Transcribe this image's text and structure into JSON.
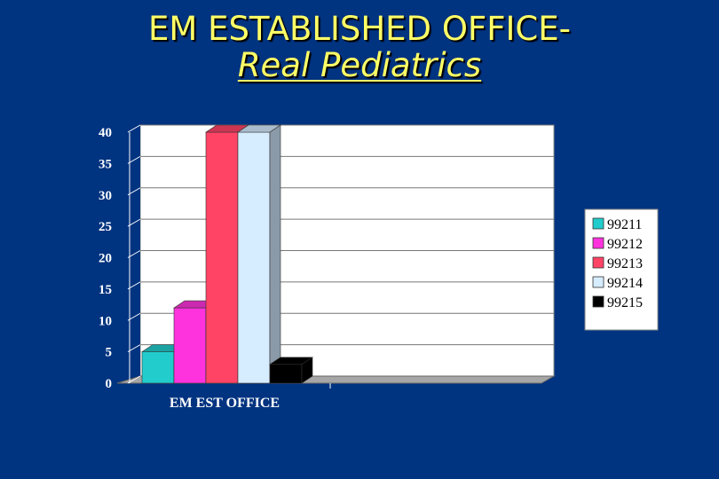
{
  "slide": {
    "title_line1": "EM ESTABLISHED OFFICE-",
    "title_line2": "Real  Pediatrics"
  },
  "chart_data": {
    "type": "bar",
    "style": "3d",
    "categories": [
      "EM EST OFFICE"
    ],
    "series": [
      {
        "name": "99211",
        "values": [
          5
        ],
        "color": "#22cccc"
      },
      {
        "name": "99212",
        "values": [
          12
        ],
        "color": "#ff33dd"
      },
      {
        "name": "99213",
        "values": [
          40
        ],
        "color": "#ff4466"
      },
      {
        "name": "99214",
        "values": [
          40
        ],
        "color": "#d6ecff"
      },
      {
        "name": "99215",
        "values": [
          3
        ],
        "color": "#000000"
      }
    ],
    "ylim": [
      0,
      40
    ],
    "yticks": [
      0,
      5,
      10,
      15,
      20,
      25,
      30,
      35,
      40
    ],
    "grid": true,
    "legend": "right",
    "plot_background": "#ffffff",
    "floor_color": "#a6a6a6"
  }
}
